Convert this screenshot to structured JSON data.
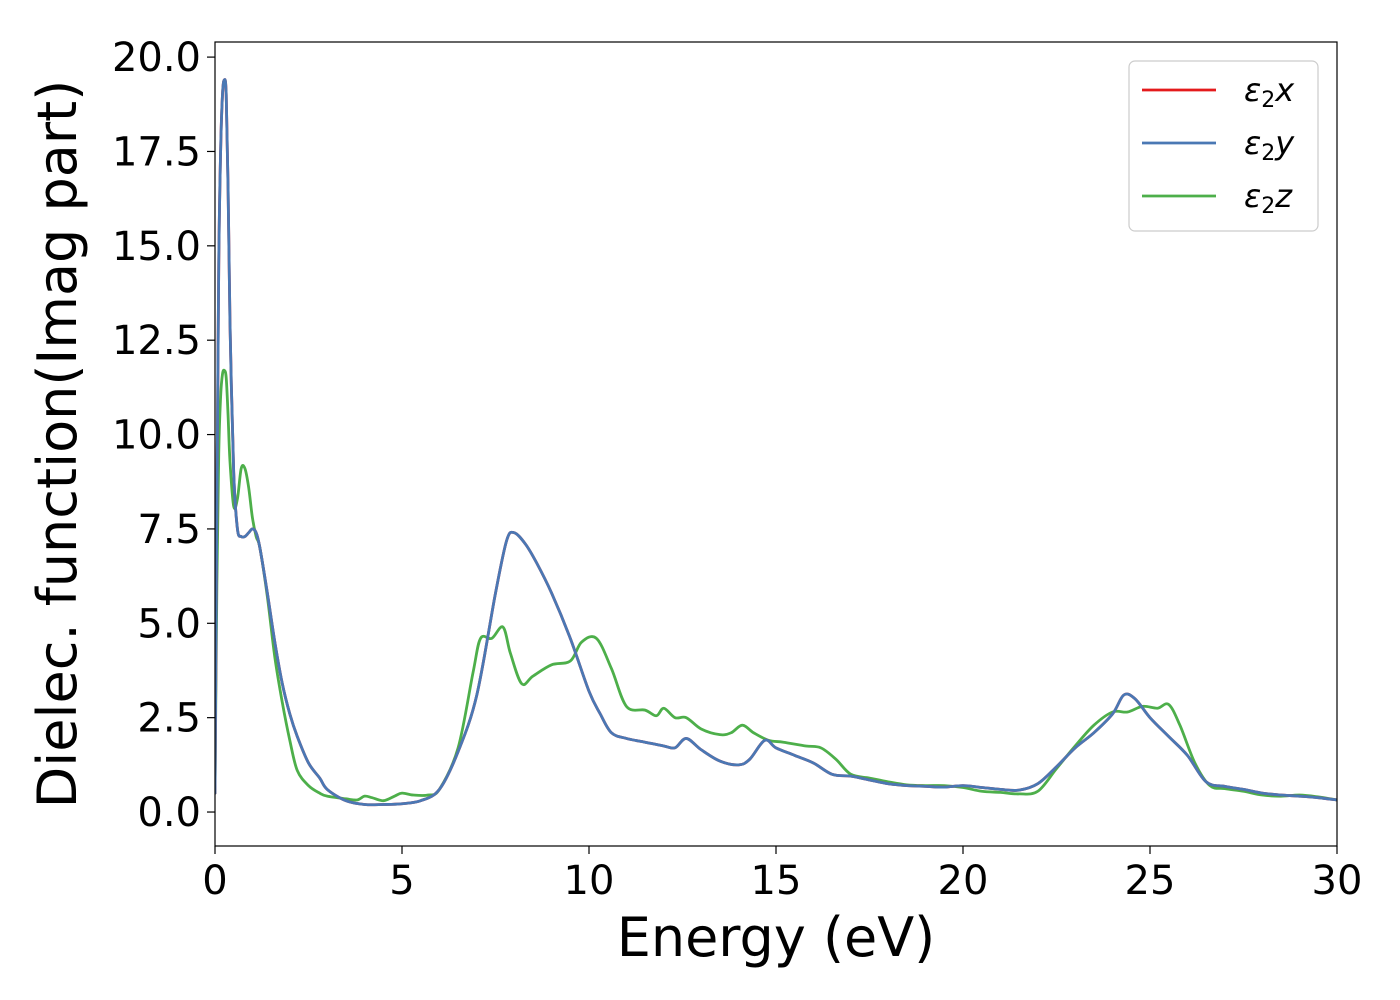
{
  "chart_data": {
    "type": "line",
    "xlabel": "Energy (eV)",
    "ylabel": "Dielec. function(Imag part)",
    "xlim": [
      0,
      30
    ],
    "ylim": [
      -0.9,
      20.4
    ],
    "xticks": [
      0,
      5,
      10,
      15,
      20,
      25,
      30
    ],
    "xtick_labels": [
      "0",
      "5",
      "10",
      "15",
      "20",
      "25",
      "30"
    ],
    "yticks": [
      0,
      2.5,
      5,
      7.5,
      10,
      12.5,
      15,
      17.5,
      20
    ],
    "ytick_labels": [
      "0.0",
      "2.5",
      "5.0",
      "7.5",
      "10.0",
      "12.5",
      "15.0",
      "17.5",
      "20.0"
    ],
    "grid": false,
    "legend_position": "top-right",
    "series": [
      {
        "name": "ε2x",
        "legend_base": "ε",
        "legend_sub": "2",
        "legend_var": "x",
        "color": "#e41a1c",
        "x": [
          0,
          0.05,
          0.1,
          0.15,
          0.2,
          0.25,
          0.3,
          0.35,
          0.4,
          0.5,
          0.6,
          0.7,
          0.8,
          0.9,
          1.0,
          1.1,
          1.2,
          1.4,
          1.6,
          1.8,
          2.0,
          2.2,
          2.5,
          2.8,
          3.0,
          3.5,
          4.0,
          4.5,
          5.0,
          5.5,
          6.0,
          6.5,
          7.0,
          7.5,
          7.8,
          8.0,
          8.3,
          8.6,
          9.0,
          9.5,
          10.0,
          10.3,
          10.6,
          11.0,
          11.5,
          12.0,
          12.3,
          12.6,
          13.0,
          13.5,
          14.0,
          14.3,
          14.7,
          15.0,
          15.5,
          16.0,
          16.5,
          17.0,
          17.5,
          18.0,
          18.5,
          19.0,
          19.5,
          20.0,
          20.5,
          21.0,
          21.5,
          22.0,
          22.5,
          23.0,
          23.5,
          24.0,
          24.3,
          24.6,
          25.0,
          25.5,
          26.0,
          26.5,
          27.0,
          27.5,
          28.0,
          28.5,
          29.0,
          29.5,
          30.0
        ],
        "values": [
          0.5,
          8.0,
          14.5,
          17.5,
          19.0,
          19.4,
          19.0,
          16.5,
          13.0,
          9.0,
          7.5,
          7.3,
          7.3,
          7.4,
          7.5,
          7.4,
          7.0,
          5.8,
          4.5,
          3.4,
          2.6,
          2.0,
          1.3,
          0.9,
          0.6,
          0.3,
          0.2,
          0.2,
          0.22,
          0.3,
          0.6,
          1.6,
          3.1,
          5.8,
          7.2,
          7.4,
          7.1,
          6.6,
          5.8,
          4.6,
          3.2,
          2.6,
          2.1,
          1.95,
          1.85,
          1.75,
          1.7,
          1.95,
          1.65,
          1.35,
          1.25,
          1.4,
          1.9,
          1.7,
          1.5,
          1.3,
          1.0,
          0.95,
          0.85,
          0.75,
          0.7,
          0.68,
          0.66,
          0.7,
          0.65,
          0.6,
          0.58,
          0.75,
          1.2,
          1.7,
          2.1,
          2.6,
          3.1,
          3.0,
          2.5,
          2.0,
          1.5,
          0.8,
          0.68,
          0.6,
          0.5,
          0.45,
          0.42,
          0.38,
          0.32
        ]
      },
      {
        "name": "ε2y",
        "legend_base": "ε",
        "legend_sub": "2",
        "legend_var": "y",
        "color": "#4a78b4",
        "x": [
          0,
          0.05,
          0.1,
          0.15,
          0.2,
          0.25,
          0.3,
          0.35,
          0.4,
          0.5,
          0.6,
          0.7,
          0.8,
          0.9,
          1.0,
          1.1,
          1.2,
          1.4,
          1.6,
          1.8,
          2.0,
          2.2,
          2.5,
          2.8,
          3.0,
          3.5,
          4.0,
          4.5,
          5.0,
          5.5,
          6.0,
          6.5,
          7.0,
          7.5,
          7.8,
          8.0,
          8.3,
          8.6,
          9.0,
          9.5,
          10.0,
          10.3,
          10.6,
          11.0,
          11.5,
          12.0,
          12.3,
          12.6,
          13.0,
          13.5,
          14.0,
          14.3,
          14.7,
          15.0,
          15.5,
          16.0,
          16.5,
          17.0,
          17.5,
          18.0,
          18.5,
          19.0,
          19.5,
          20.0,
          20.5,
          21.0,
          21.5,
          22.0,
          22.5,
          23.0,
          23.5,
          24.0,
          24.3,
          24.6,
          25.0,
          25.5,
          26.0,
          26.5,
          27.0,
          27.5,
          28.0,
          28.5,
          29.0,
          29.5,
          30.0
        ],
        "values": [
          0.5,
          8.0,
          14.5,
          17.5,
          19.0,
          19.4,
          19.0,
          16.5,
          13.0,
          9.0,
          7.5,
          7.3,
          7.3,
          7.4,
          7.5,
          7.4,
          7.0,
          5.8,
          4.5,
          3.4,
          2.6,
          2.0,
          1.3,
          0.9,
          0.6,
          0.3,
          0.2,
          0.2,
          0.22,
          0.3,
          0.6,
          1.6,
          3.1,
          5.8,
          7.2,
          7.4,
          7.1,
          6.6,
          5.8,
          4.6,
          3.2,
          2.6,
          2.1,
          1.95,
          1.85,
          1.75,
          1.7,
          1.95,
          1.65,
          1.35,
          1.25,
          1.4,
          1.9,
          1.7,
          1.5,
          1.3,
          1.0,
          0.95,
          0.85,
          0.75,
          0.7,
          0.68,
          0.66,
          0.7,
          0.65,
          0.6,
          0.58,
          0.75,
          1.2,
          1.7,
          2.1,
          2.6,
          3.1,
          3.0,
          2.5,
          2.0,
          1.5,
          0.8,
          0.68,
          0.6,
          0.5,
          0.45,
          0.42,
          0.38,
          0.32
        ]
      },
      {
        "name": "ε2z",
        "legend_base": "ε",
        "legend_sub": "2",
        "legend_var": "z",
        "color": "#4daf4a",
        "x": [
          0,
          0.05,
          0.1,
          0.15,
          0.2,
          0.25,
          0.3,
          0.35,
          0.4,
          0.5,
          0.6,
          0.7,
          0.8,
          0.9,
          1.0,
          1.1,
          1.2,
          1.4,
          1.6,
          1.8,
          2.0,
          2.2,
          2.5,
          2.8,
          3.0,
          3.5,
          3.8,
          4.0,
          4.2,
          4.5,
          4.8,
          5.0,
          5.3,
          5.7,
          6.0,
          6.5,
          6.9,
          7.1,
          7.4,
          7.7,
          7.9,
          8.2,
          8.5,
          9.0,
          9.5,
          9.8,
          10.2,
          10.6,
          11.0,
          11.5,
          11.8,
          12.0,
          12.3,
          12.6,
          13.0,
          13.5,
          13.8,
          14.1,
          14.4,
          14.8,
          15.2,
          15.8,
          16.2,
          16.6,
          17.0,
          17.5,
          18.0,
          18.5,
          19.0,
          19.5,
          20.0,
          20.5,
          21.0,
          21.5,
          22.0,
          22.5,
          23.0,
          23.5,
          24.0,
          24.4,
          24.8,
          25.2,
          25.5,
          25.8,
          26.2,
          26.6,
          27.0,
          27.5,
          28.0,
          28.5,
          29.0,
          29.5,
          30.0
        ],
        "values": [
          0.5,
          6.0,
          9.5,
          11.0,
          11.6,
          11.7,
          11.5,
          10.5,
          9.3,
          8.1,
          8.3,
          9.1,
          9.1,
          8.6,
          7.8,
          7.3,
          7.0,
          5.7,
          4.1,
          2.9,
          1.9,
          1.1,
          0.7,
          0.5,
          0.42,
          0.35,
          0.32,
          0.42,
          0.38,
          0.3,
          0.42,
          0.5,
          0.45,
          0.45,
          0.6,
          1.7,
          3.7,
          4.6,
          4.6,
          4.9,
          4.2,
          3.4,
          3.6,
          3.9,
          4.0,
          4.5,
          4.6,
          3.8,
          2.8,
          2.7,
          2.55,
          2.75,
          2.5,
          2.5,
          2.2,
          2.05,
          2.1,
          2.3,
          2.1,
          1.9,
          1.85,
          1.75,
          1.7,
          1.4,
          1.0,
          0.9,
          0.8,
          0.72,
          0.7,
          0.7,
          0.65,
          0.55,
          0.52,
          0.48,
          0.55,
          1.15,
          1.75,
          2.3,
          2.65,
          2.65,
          2.8,
          2.75,
          2.85,
          2.3,
          1.3,
          0.7,
          0.62,
          0.55,
          0.45,
          0.42,
          0.45,
          0.4,
          0.32
        ]
      }
    ]
  }
}
